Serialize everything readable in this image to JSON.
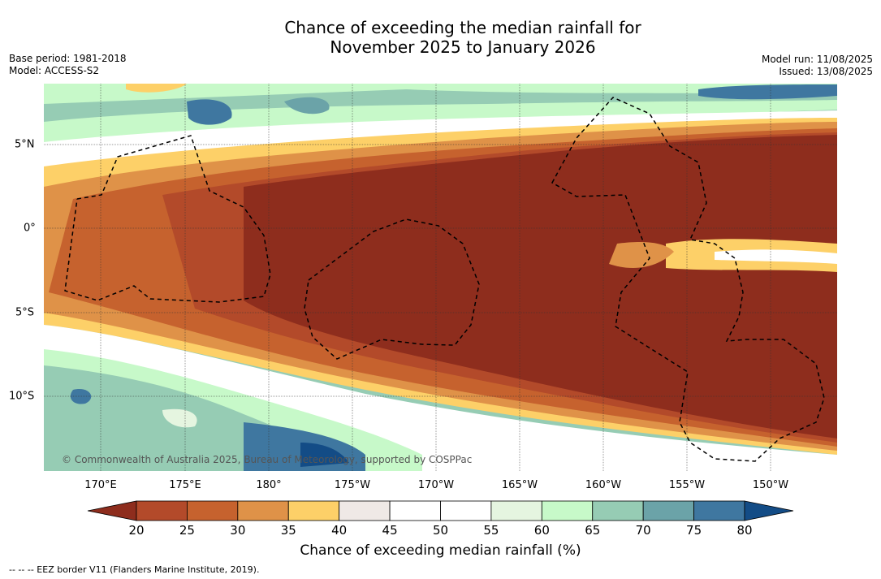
{
  "title_line1": "Chance of exceeding the median rainfall for",
  "title_line2": "November 2025 to January 2026",
  "meta_left": [
    "Base period: 1981-2018",
    "Model: ACCESS-S2"
  ],
  "meta_right": [
    "Model run: 11/08/2025",
    "Issued: 13/08/2025"
  ],
  "lon_labels": [
    "170°E",
    "175°E",
    "180°",
    "175°W",
    "170°W",
    "165°W",
    "160°W",
    "155°W",
    "150°W"
  ],
  "lat_labels": [
    "5°N",
    "0°",
    "5°S",
    "10°S"
  ],
  "copyright": "© Commonwealth of Australia 2025, Bureau of Meteorology, supported by COSPPac",
  "colorbar": {
    "ticks": [
      "20",
      "25",
      "30",
      "35",
      "40",
      "45",
      "50",
      "55",
      "60",
      "65",
      "70",
      "75",
      "80"
    ],
    "colors": [
      "#8e2d1d",
      "#b34a2a",
      "#c6622e",
      "#df9248",
      "#fdd068",
      "#efe9e6",
      "#ffffff",
      "#ffffff",
      "#e5f5e0",
      "#c7f9c9",
      "#96ccb4",
      "#6ba3a8",
      "#3f77a0",
      "#134c86"
    ],
    "title": "Chance of exceeding median rainfall (%)"
  },
  "footer": "--  --  -- EEZ border V11 (Flanders Marine Institute, 2019)."
}
